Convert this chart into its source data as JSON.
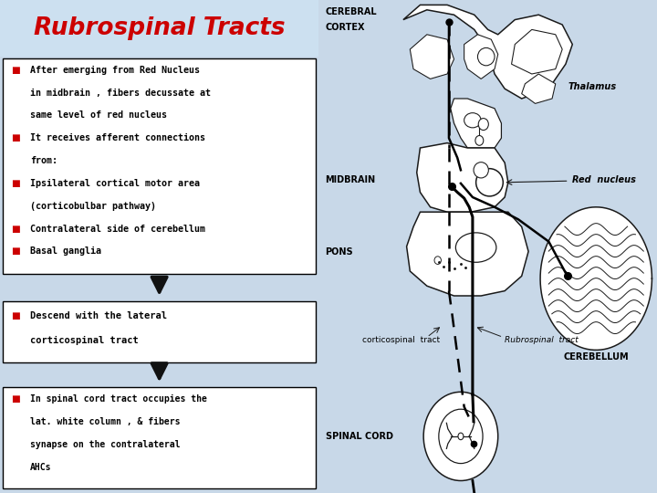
{
  "title": "Rubrospinal Tracts",
  "title_color": "#cc0000",
  "title_fontsize": 19,
  "title_bg": "#cce0f0",
  "slide_bg": "#c8d8e8",
  "box_bg": "#ffffff",
  "box_border": "#000000",
  "text_color": "#000000",
  "bullet_color": "#cc0000",
  "arrow_color": "#111111",
  "diagram_bg": "#ffffff",
  "box1_lines": [
    [
      true,
      "After emerging from Red Nucleus"
    ],
    [
      false,
      "in midbrain , fibers decussate at"
    ],
    [
      false,
      "same level of red nucleus"
    ],
    [
      true,
      "It receives afferent connections"
    ],
    [
      false,
      "from:"
    ],
    [
      true,
      "Ipsilateral cortical motor area"
    ],
    [
      false,
      "(corticobulbar pathway)"
    ],
    [
      true,
      "Contralateral side of cerebellum"
    ],
    [
      true,
      "Basal ganglia"
    ]
  ],
  "box2_lines": [
    [
      true,
      "Descend with the lateral"
    ],
    [
      false,
      "corticospinal tract"
    ]
  ],
  "box3_lines": [
    [
      true,
      "In spinal cord tract occupies the"
    ],
    [
      false,
      "lat. white column , & fibers"
    ],
    [
      false,
      "synapse on the contralateral"
    ],
    [
      false,
      "AHCs"
    ]
  ]
}
